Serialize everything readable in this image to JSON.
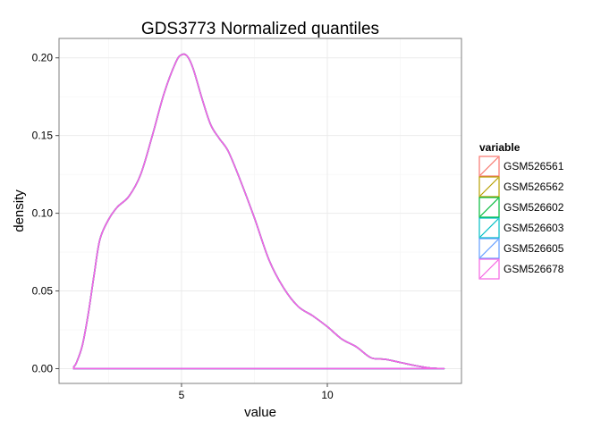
{
  "chart_data": {
    "type": "line",
    "title": "GDS3773 Normalized quantiles",
    "xlabel": "value",
    "ylabel": "density",
    "xlim": [
      0.8,
      14.6
    ],
    "ylim": [
      -0.0095,
      0.2125
    ],
    "x_ticks": [
      5,
      10
    ],
    "x_tick_labels": [
      "5",
      "10"
    ],
    "y_ticks": [
      0.0,
      0.05,
      0.1,
      0.15,
      0.2
    ],
    "y_tick_labels": [
      "0.00",
      "0.05",
      "0.10",
      "0.15",
      "0.20"
    ],
    "grid": true,
    "legend": {
      "title": "variable",
      "placement": "right"
    },
    "series": [
      {
        "name": "GSM526561",
        "color": "#F8766D"
      },
      {
        "name": "GSM526562",
        "color": "#B79F00"
      },
      {
        "name": "GSM526602",
        "color": "#00BA38"
      },
      {
        "name": "GSM526603",
        "color": "#00BFC4"
      },
      {
        "name": "GSM526605",
        "color": "#619CFF"
      },
      {
        "name": "GSM526678",
        "color": "#F564E3"
      }
    ],
    "density_curve": {
      "x": [
        1.3,
        1.4,
        1.6,
        1.8,
        2.0,
        2.2,
        2.5,
        2.8,
        3.2,
        3.6,
        4.0,
        4.4,
        4.8,
        5.0,
        5.2,
        5.4,
        5.7,
        6.0,
        6.3,
        6.6,
        7.0,
        7.5,
        8.0,
        8.5,
        9.0,
        9.5,
        10.0,
        10.5,
        11.0,
        11.5,
        12.0,
        12.5,
        13.0,
        13.5,
        14.0
      ],
      "y": [
        0.001,
        0.004,
        0.015,
        0.035,
        0.06,
        0.083,
        0.096,
        0.104,
        0.111,
        0.125,
        0.15,
        0.177,
        0.197,
        0.202,
        0.201,
        0.193,
        0.174,
        0.157,
        0.148,
        0.14,
        0.122,
        0.097,
        0.07,
        0.052,
        0.04,
        0.034,
        0.027,
        0.019,
        0.014,
        0.007,
        0.006,
        0.004,
        0.002,
        0.0005,
        0.0
      ]
    }
  }
}
